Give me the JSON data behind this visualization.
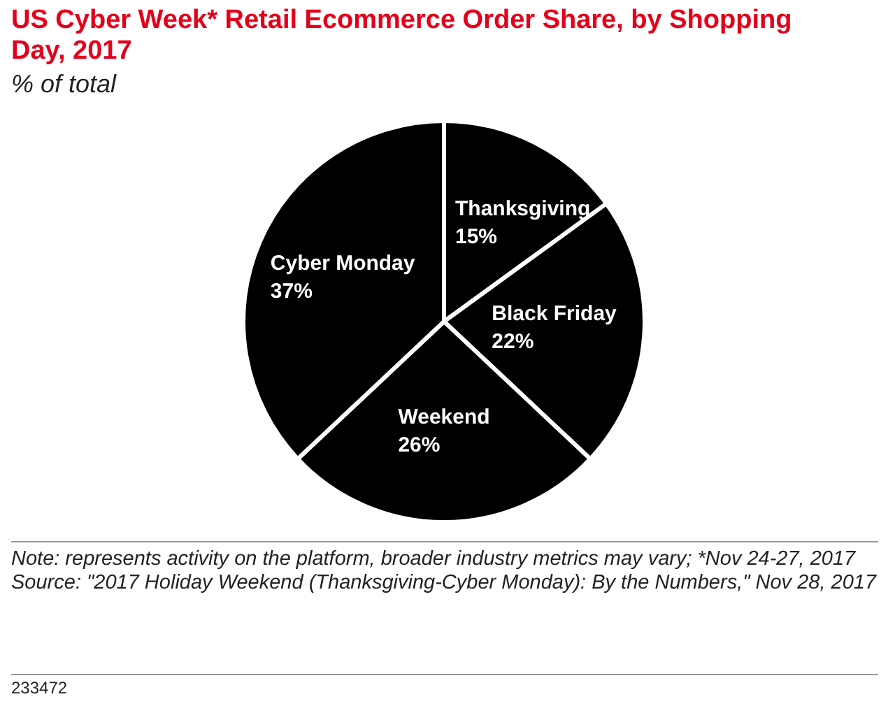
{
  "chart_data": {
    "type": "pie",
    "title": "US Cyber Week* Retail Ecommerce Order Share, by Shopping Day, 2017",
    "subtitle": "% of total",
    "categories": [
      "Thanksgiving",
      "Black Friday",
      "Weekend",
      "Cyber Monday"
    ],
    "values": [
      15,
      22,
      26,
      37
    ],
    "value_labels": [
      "15%",
      "22%",
      "26%",
      "37%"
    ],
    "colors": [
      "#000000",
      "#000000",
      "#000000",
      "#000000"
    ],
    "legend": false,
    "annotations": [
      "Note: represents activity on the platform, broader industry metrics may vary; *Nov 24-27, 2017",
      "Source: \"2017 Holiday Weekend (Thanksgiving-Cyber Monday): By the Numbers,\" Nov 28, 2017",
      "233472"
    ]
  }
}
